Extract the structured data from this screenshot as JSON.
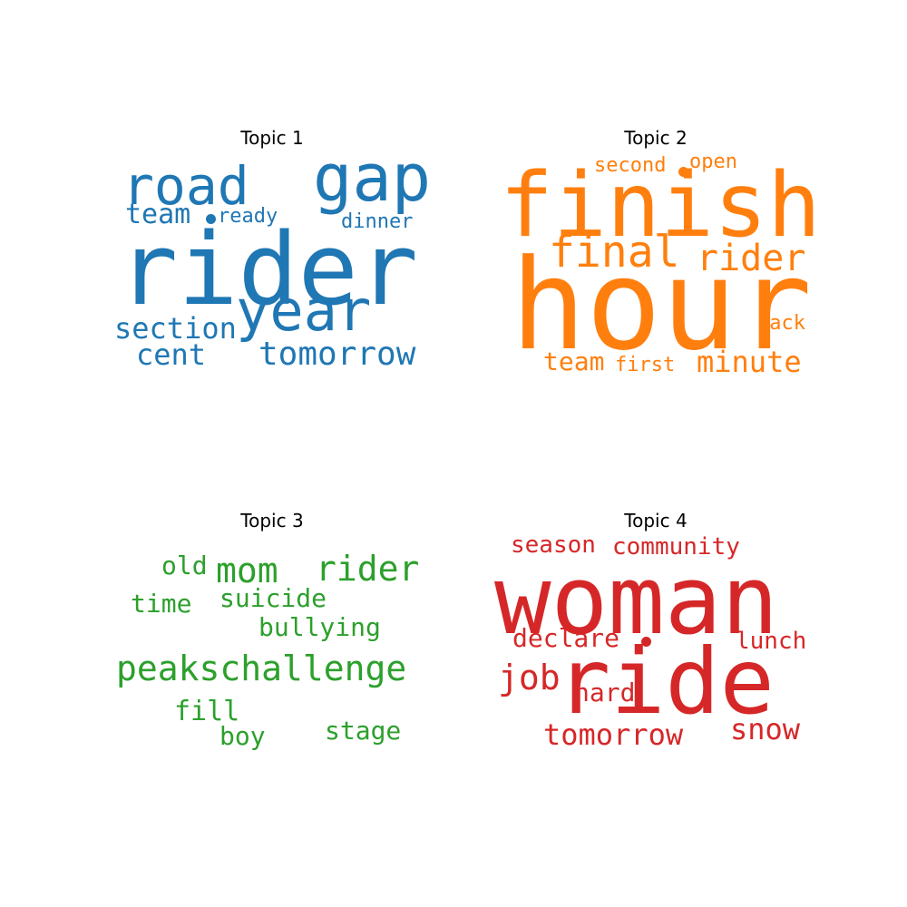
{
  "topics": [
    {
      "title": "Topic 1",
      "color": "#1f77b4",
      "words": [
        "rider",
        "gap",
        "road",
        "year",
        "tomorrow",
        "section",
        "cent",
        "team",
        "ready",
        "dinner"
      ]
    },
    {
      "title": "Topic 2",
      "color": "#ff7f0e",
      "words": [
        "finish",
        "hour",
        "final",
        "rider",
        "minute",
        "team",
        "first",
        "second",
        "open",
        "pack"
      ]
    },
    {
      "title": "Topic 3",
      "color": "#2ca02c",
      "words": [
        "peakschallenge",
        "mom",
        "rider",
        "suicide",
        "bullying",
        "old",
        "time",
        "fill",
        "boy",
        "stage"
      ]
    },
    {
      "title": "Topic 4",
      "color": "#d62728",
      "words": [
        "woman",
        "ride",
        "season",
        "community",
        "declare",
        "lunch",
        "job",
        "hard",
        "tomorrow",
        "snow"
      ]
    }
  ]
}
